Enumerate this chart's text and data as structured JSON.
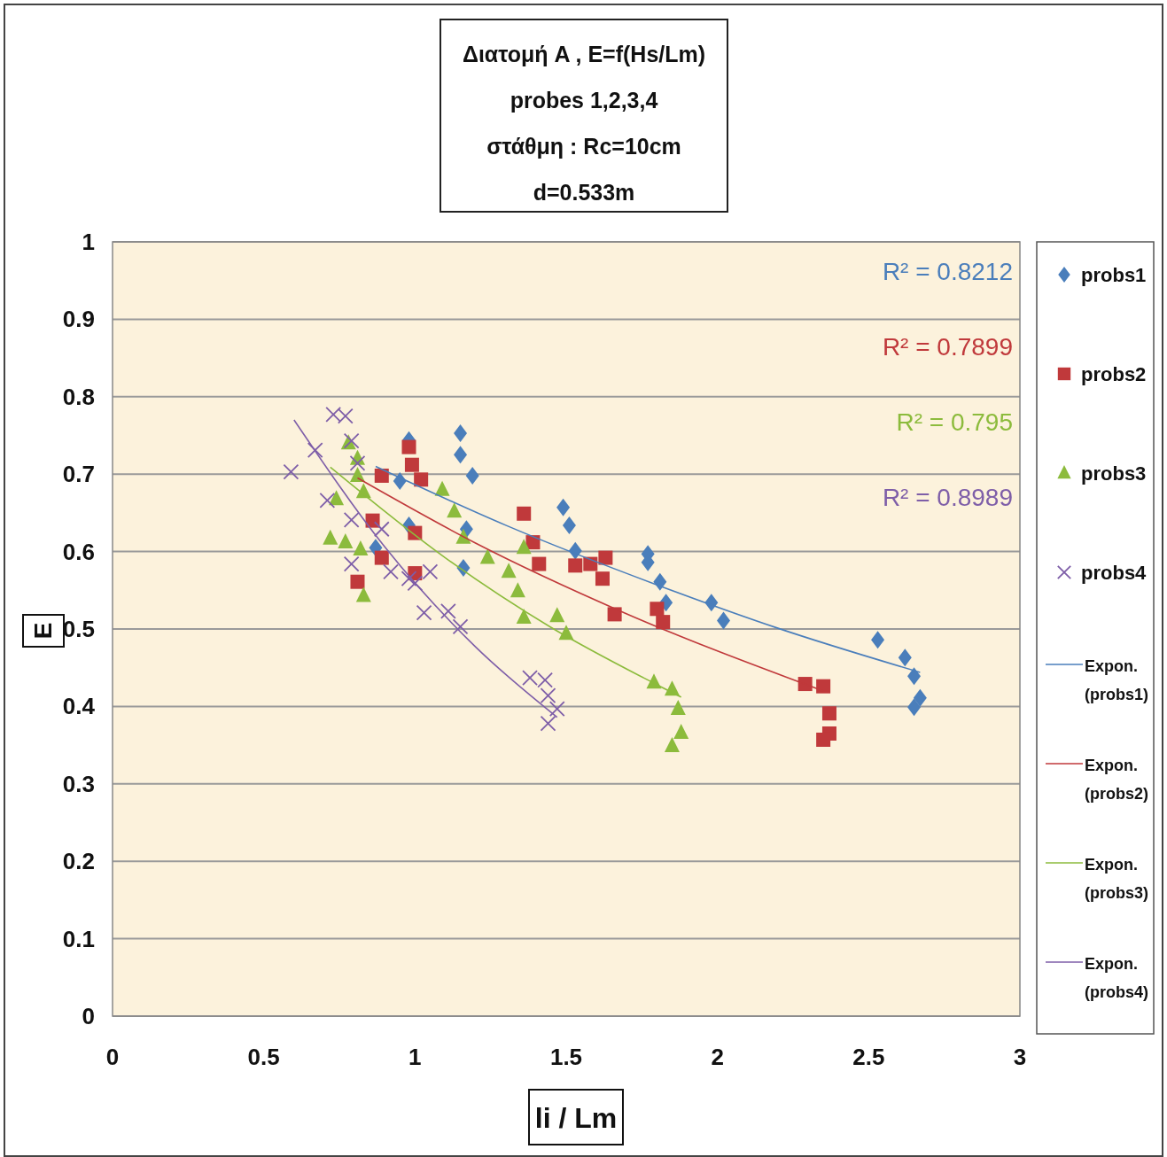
{
  "chart_data": {
    "type": "scatter",
    "title": "Διατομή  A , E=f(Hs/Lm)",
    "subtitle": "probes 1,2,3,4\nστάθμη : Rc=10cm\nd=0.533m",
    "xlabel": "li / Lm",
    "ylabel": "E",
    "xlim": [
      0,
      3
    ],
    "xticks": [
      0,
      0.5,
      1,
      1.5,
      2,
      2.5,
      3
    ],
    "ylim": [
      0,
      1
    ],
    "yticks": [
      0,
      0.1,
      0.2,
      0.3,
      0.4,
      0.5,
      0.6,
      0.7,
      0.8,
      0.9,
      1
    ],
    "grid": "y",
    "legend": "right",
    "annotations": [
      "R² = 0.8212",
      "R² = 0.7899",
      "R² = 0.795",
      "R² = 0.8989"
    ],
    "series": [
      {
        "name": "probs1",
        "marker": "diamond",
        "color": "#4a7ebb",
        "x": [
          0.98,
          0.95,
          0.98,
          0.87,
          1.15,
          1.15,
          1.19,
          1.17,
          1.16,
          1.49,
          1.51,
          1.53,
          1.77,
          1.77,
          1.81,
          1.83,
          1.98,
          2.02,
          2.53,
          2.62,
          2.65,
          2.67,
          2.65
        ],
        "values": [
          0.744,
          0.691,
          0.634,
          0.605,
          0.753,
          0.725,
          0.698,
          0.629,
          0.579,
          0.657,
          0.634,
          0.601,
          0.597,
          0.586,
          0.561,
          0.534,
          0.534,
          0.511,
          0.486,
          0.463,
          0.439,
          0.411,
          0.399
        ]
      },
      {
        "name": "probs2",
        "marker": "square",
        "color": "#c0393b",
        "x": [
          0.98,
          0.99,
          1.02,
          0.89,
          0.86,
          0.89,
          0.81,
          1.0,
          1.0,
          1.36,
          1.39,
          1.41,
          1.53,
          1.58,
          1.63,
          1.62,
          1.66,
          1.8,
          1.82,
          2.29,
          2.35,
          2.37,
          2.37,
          2.35
        ],
        "values": [
          0.735,
          0.712,
          0.693,
          0.698,
          0.64,
          0.592,
          0.561,
          0.624,
          0.572,
          0.649,
          0.612,
          0.584,
          0.582,
          0.584,
          0.592,
          0.565,
          0.519,
          0.526,
          0.509,
          0.429,
          0.426,
          0.391,
          0.365,
          0.357
        ]
      },
      {
        "name": "probs3",
        "marker": "triangle",
        "color": "#8cbb3c",
        "x": [
          0.78,
          0.81,
          0.81,
          0.83,
          0.74,
          0.72,
          0.77,
          0.82,
          0.83,
          1.09,
          1.13,
          1.16,
          1.24,
          1.31,
          1.34,
          1.36,
          1.36,
          1.47,
          1.5,
          1.79,
          1.85,
          1.87,
          1.88,
          1.85
        ],
        "values": [
          0.74,
          0.72,
          0.698,
          0.677,
          0.668,
          0.617,
          0.612,
          0.603,
          0.543,
          0.68,
          0.652,
          0.618,
          0.592,
          0.574,
          0.549,
          0.605,
          0.515,
          0.517,
          0.494,
          0.431,
          0.422,
          0.397,
          0.366,
          0.349
        ]
      },
      {
        "name": "probs4",
        "marker": "cross",
        "color": "#7e5ea8",
        "x": [
          0.59,
          0.67,
          0.73,
          0.77,
          0.79,
          0.81,
          0.71,
          0.79,
          0.79,
          0.89,
          0.92,
          0.98,
          1.0,
          1.05,
          1.03,
          1.11,
          1.15,
          1.38,
          1.43,
          1.44,
          1.47,
          1.44
        ],
        "values": [
          0.703,
          0.731,
          0.777,
          0.775,
          0.743,
          0.714,
          0.666,
          0.641,
          0.584,
          0.629,
          0.574,
          0.565,
          0.559,
          0.574,
          0.521,
          0.523,
          0.503,
          0.437,
          0.434,
          0.414,
          0.397,
          0.378
        ]
      },
      {
        "name": "Expon. (probs1)",
        "type": "line",
        "marker": "none",
        "color": "#4a7ebb",
        "x": [
          0.87,
          1.3,
          1.8,
          2.2,
          2.67
        ],
        "values": [
          0.71,
          0.634,
          0.557,
          0.501,
          0.444
        ]
      },
      {
        "name": "Expon. (probs2)",
        "type": "line",
        "marker": "none",
        "color": "#c0393b",
        "x": [
          0.81,
          1.2,
          1.68,
          2.35
        ],
        "values": [
          0.695,
          0.611,
          0.523,
          0.42
        ]
      },
      {
        "name": "Expon. (probs3)",
        "type": "line",
        "marker": "none",
        "color": "#8cbb3c",
        "x": [
          0.72,
          1.1,
          1.45,
          1.79,
          1.88
        ],
        "values": [
          0.709,
          0.592,
          0.502,
          0.43,
          0.412
        ]
      },
      {
        "name": "Expon. (probs4)",
        "type": "line",
        "marker": "none",
        "color": "#7e5ea8",
        "x": [
          0.6,
          0.9,
          1.2,
          1.47
        ],
        "values": [
          0.77,
          0.606,
          0.477,
          0.386
        ]
      }
    ]
  }
}
